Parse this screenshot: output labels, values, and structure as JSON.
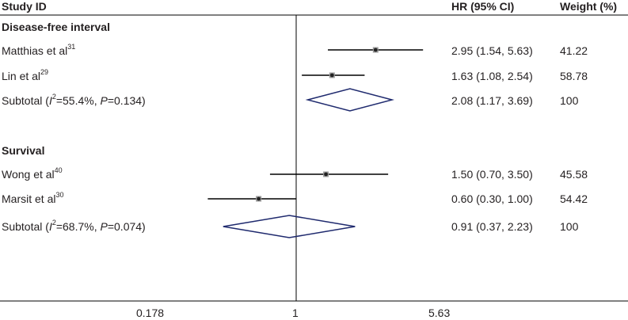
{
  "header": {
    "study_id": "Study ID",
    "hr_ci": "HR (95% CI)",
    "weight": "Weight (%)"
  },
  "chart_data": {
    "type": "forest",
    "x_scale": "log",
    "xlim": [
      0.178,
      5.63
    ],
    "null_line": 1,
    "x_ticks": [
      "0.178",
      "1",
      "5.63"
    ],
    "groups": [
      {
        "title": "Disease-free interval",
        "studies": [
          {
            "name": "Matthias et al",
            "ref": "31",
            "hr": 2.95,
            "lo": 1.54,
            "hi": 5.63,
            "hr_ci": "2.95 (1.54, 5.63)",
            "weight": "41.22"
          },
          {
            "name": "Lin et al",
            "ref": "29",
            "hr": 1.63,
            "lo": 1.08,
            "hi": 2.54,
            "hr_ci": "1.63 (1.08, 2.54)",
            "weight": "58.78"
          }
        ],
        "subtotal": {
          "label_prefix": "Subtotal (",
          "i2_sym": "I",
          "i2_sup": "2",
          "i2_rest": "=55.4%, ",
          "p_sym": "P",
          "p_rest": "=0.134)",
          "hr": 2.08,
          "lo": 1.17,
          "hi": 3.69,
          "hr_ci": "2.08 (1.17, 3.69)",
          "weight": "100"
        }
      },
      {
        "title": "Survival",
        "studies": [
          {
            "name": "Wong et al",
            "ref": "40",
            "hr": 1.5,
            "lo": 0.7,
            "hi": 3.5,
            "hr_ci": "1.50 (0.70, 3.50)",
            "weight": "45.58"
          },
          {
            "name": "Marsit et al",
            "ref": "30",
            "hr": 0.6,
            "lo": 0.3,
            "hi": 1.0,
            "hr_ci": "0.60 (0.30, 1.00)",
            "weight": "54.42"
          }
        ],
        "subtotal": {
          "label_prefix": "Subtotal (",
          "i2_sym": "I",
          "i2_sup": "2",
          "i2_rest": "=68.7%, ",
          "p_sym": "P",
          "p_rest": "=0.074)",
          "hr": 0.91,
          "lo": 0.37,
          "hi": 2.23,
          "hr_ci": "0.91 (0.37, 2.23)",
          "weight": "100"
        }
      }
    ],
    "colors": {
      "diamond": "#1f2a6e",
      "line": "#000000",
      "point": "#555555"
    }
  }
}
